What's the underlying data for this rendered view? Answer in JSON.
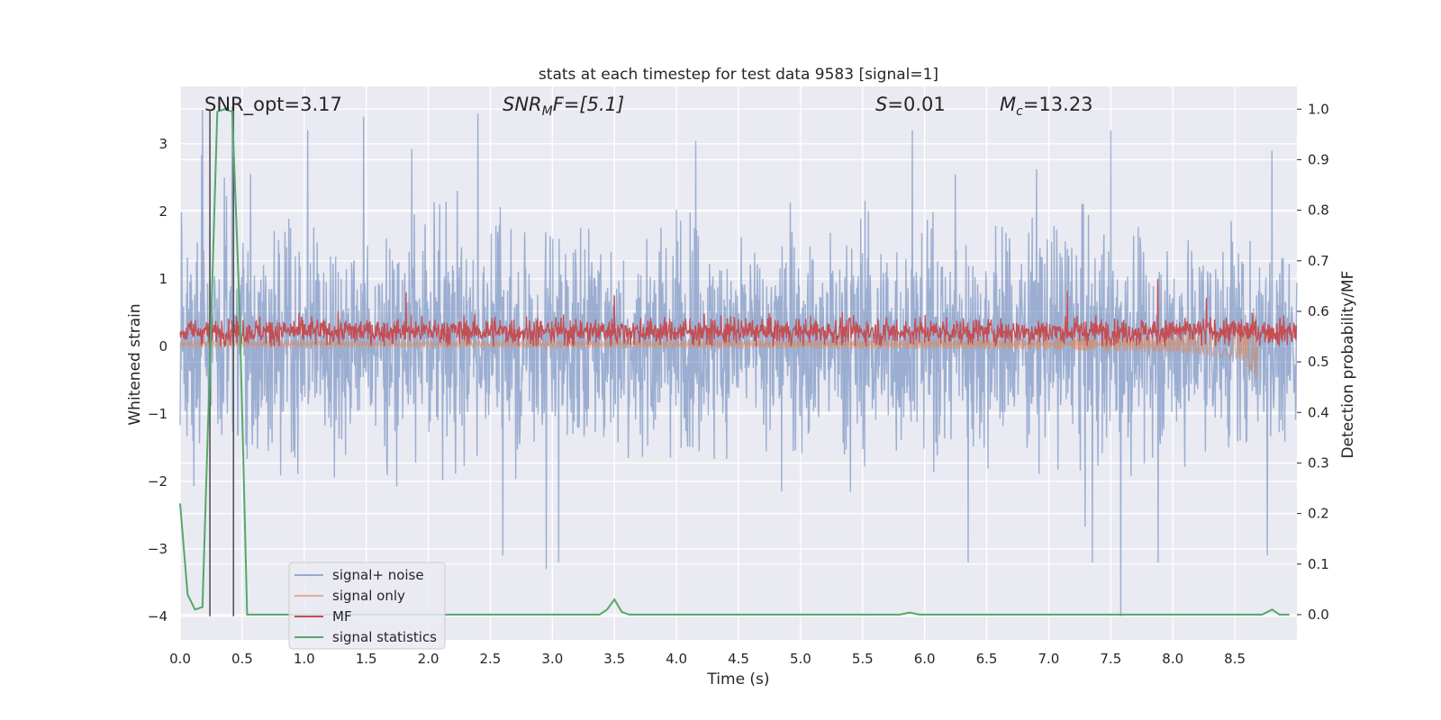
{
  "chart_data": {
    "type": "line",
    "title": "stats at each timestep for test data 9583 [signal=1]",
    "xlabel": "Time (s)",
    "ylabel_left": "Whitened strain",
    "ylabel_right": "Detection probability/MF",
    "xlim": [
      0.0,
      9.0
    ],
    "ylim_left": [
      -4.35,
      3.85
    ],
    "ylim_right": [
      -0.05,
      1.045
    ],
    "x_ticks": [
      "0.0",
      "0.5",
      "1.0",
      "1.5",
      "2.0",
      "2.5",
      "3.0",
      "3.5",
      "4.0",
      "4.5",
      "5.0",
      "5.5",
      "6.0",
      "6.5",
      "7.0",
      "7.5",
      "8.0",
      "8.5"
    ],
    "y_ticks_left": [
      "−4",
      "−3",
      "−2",
      "−1",
      "0",
      "1",
      "2",
      "3"
    ],
    "y_ticks_right": [
      "0.0",
      "0.1",
      "0.2",
      "0.3",
      "0.4",
      "0.5",
      "0.6",
      "0.7",
      "0.8",
      "0.9",
      "1.0"
    ],
    "grid": true,
    "legend_position": "lower-left",
    "annotations": {
      "snr_opt": "SNR_opt=3.17",
      "snr_mf_name": "SNR",
      "snr_mf_sub": "M",
      "snr_mf_rest": "F=[5.1]",
      "s_name": "S",
      "s_rest": "=0.01",
      "mc_name": "M",
      "mc_sub": "c",
      "mc_rest": "=13.23"
    },
    "vertical_lines_x": [
      0.24,
      0.43
    ],
    "series": [
      {
        "name": "signal+ noise",
        "color": "#4c72b0",
        "axis": "left",
        "sample_rate": "dense",
        "typical_envelope": [
          -1.8,
          2.0
        ],
        "peaks": [
          [
            0.18,
            3.5
          ],
          [
            0.42,
            3.55
          ],
          [
            1.03,
            3.2
          ],
          [
            1.48,
            3.4
          ],
          [
            2.4,
            3.45
          ],
          [
            5.9,
            3.2
          ],
          [
            7.5,
            3.2
          ],
          [
            8.8,
            2.9
          ],
          [
            7.58,
            -4.0
          ],
          [
            2.6,
            -3.1
          ],
          [
            2.95,
            -3.3
          ],
          [
            3.05,
            -3.2
          ],
          [
            6.35,
            -3.2
          ],
          [
            7.35,
            -3.2
          ],
          [
            8.76,
            -3.1
          ]
        ]
      },
      {
        "name": "signal only",
        "color": "#dd8452",
        "axis": "left",
        "chirp_end": 8.67,
        "final_min": -0.5,
        "final_max": 0.35
      },
      {
        "name": "MF",
        "color": "#c44e52",
        "axis": "left",
        "typical_range": [
          0.0,
          0.5
        ],
        "peaks": [
          [
            1.82,
            0.8
          ],
          [
            3.5,
            0.75
          ],
          [
            7.15,
            0.82
          ],
          [
            7.88,
            1.0
          ],
          [
            8.27,
            0.72
          ]
        ]
      },
      {
        "name": "signal statistics",
        "color": "#55a868",
        "axis": "right",
        "x": [
          0.0,
          0.06,
          0.12,
          0.18,
          0.24,
          0.3,
          0.36,
          0.42,
          0.48,
          0.54,
          0.6,
          1.0,
          2.0,
          3.0,
          3.38,
          3.44,
          3.5,
          3.56,
          3.62,
          4.0,
          5.0,
          5.8,
          5.88,
          5.96,
          6.5,
          7.0,
          8.0,
          8.72,
          8.8,
          8.86,
          8.94
        ],
        "y": [
          0.22,
          0.04,
          0.01,
          0.015,
          0.5,
          0.995,
          1.0,
          0.995,
          0.6,
          0.0,
          0.0,
          0.0,
          0.0,
          0.0,
          0.0,
          0.01,
          0.03,
          0.005,
          0.0,
          0.0,
          0.0,
          0.0,
          0.004,
          0.0,
          0.0,
          0.0,
          0.0,
          0.0,
          0.01,
          0.0,
          0.0
        ]
      }
    ]
  }
}
